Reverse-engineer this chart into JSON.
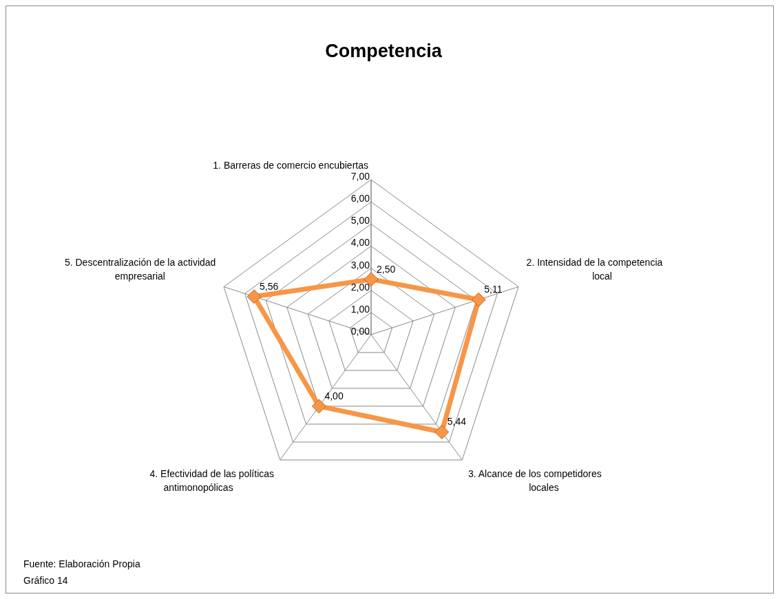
{
  "chart_data": {
    "type": "radar",
    "title": "Competencia",
    "categories": [
      "1. Barreras de comercio encubiertas",
      "2. Intensidad de la competencia local",
      "3. Alcance de los competidores locales",
      "4. Efectividad de las políticas antimonopólicas",
      "5. Descentralización de la actividad empresarial"
    ],
    "series": [
      {
        "color": "#f79646",
        "values": [
          2.5,
          5.11,
          5.44,
          4.0,
          5.56
        ],
        "value_labels": [
          "2,50",
          "5,11",
          "5,44",
          "4,00",
          "5,56"
        ]
      }
    ],
    "ylim": [
      0,
      7
    ],
    "yticks": [
      {
        "value": 0,
        "label": "0,00"
      },
      {
        "value": 1,
        "label": "1,00"
      },
      {
        "value": 2,
        "label": "2,00"
      },
      {
        "value": 3,
        "label": "3,00"
      },
      {
        "value": 4,
        "label": "4,00"
      },
      {
        "value": 5,
        "label": "5,00"
      },
      {
        "value": 6,
        "label": "6,00"
      },
      {
        "value": 7,
        "label": "7,00"
      }
    ],
    "grid": true,
    "marker": "diamond",
    "annotations": [
      "Fuente: Elaboración Propia",
      "Gráfico 14"
    ]
  }
}
